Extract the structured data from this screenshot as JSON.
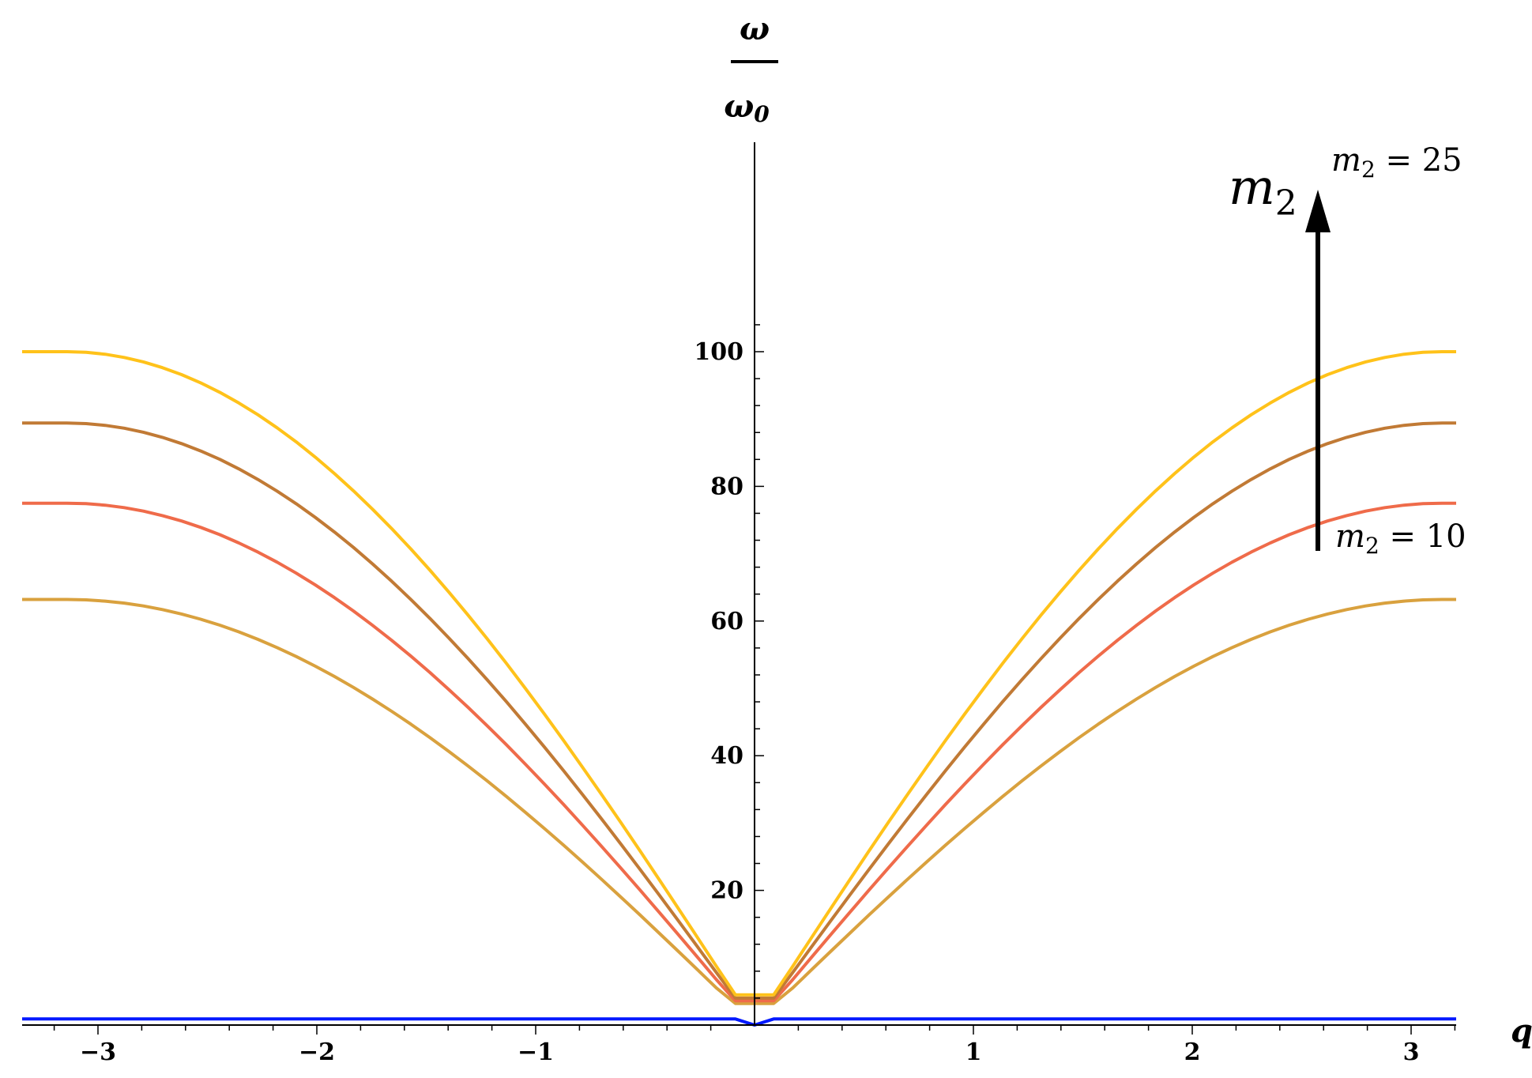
{
  "chart_data": {
    "type": "line",
    "xlabel": "q",
    "ylabel_num": "ω",
    "ylabel_den": "ω0",
    "xlim": [
      -3.3,
      3.3
    ],
    "ylim": [
      0,
      105
    ],
    "xticks": [
      -3,
      -2,
      -1,
      1,
      2,
      3
    ],
    "yticks": [
      20,
      40,
      60,
      80,
      100
    ],
    "grid": false,
    "series": [
      {
        "color": "#D9A13E",
        "amplitude": 63.2,
        "offset": 3.2
      },
      {
        "color": "#EF6B4A",
        "amplitude": 77.5,
        "offset": 3.6
      },
      {
        "color": "#C17A35",
        "amplitude": 89.4,
        "offset": 4.0
      },
      {
        "color": "#FFC21A",
        "amplitude": 100.0,
        "offset": 4.5
      },
      {
        "color": "#0019FF",
        "flat_value": 0.9,
        "dip_value": 0.0
      }
    ],
    "annotations": {
      "top": {
        "m": "m",
        "sub": "2",
        "text": " = 25"
      },
      "bottom": {
        "m": "m",
        "sub": "2",
        "text": " = 10"
      },
      "arrow": {
        "m": "m",
        "sub": "2"
      }
    }
  }
}
